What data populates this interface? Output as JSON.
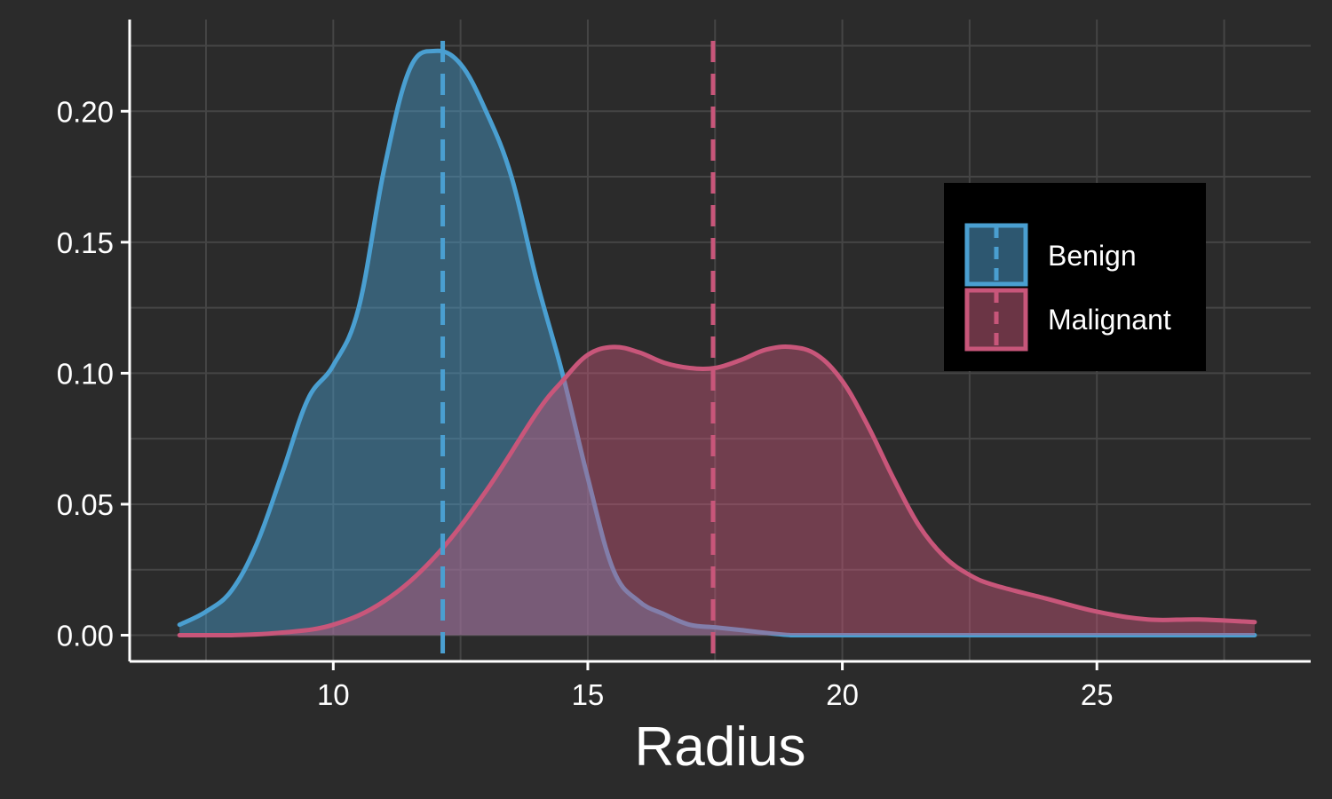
{
  "chart_data": {
    "type": "area",
    "title": "",
    "xlabel": "Radius",
    "ylabel": "",
    "xlim": [
      6,
      29.2
    ],
    "ylim": [
      -0.01,
      0.235
    ],
    "xticks": [
      10,
      15,
      20,
      25
    ],
    "yticks": [
      0.0,
      0.05,
      0.1,
      0.15,
      0.2
    ],
    "xtick_labels": [
      "10",
      "15",
      "20",
      "25"
    ],
    "ytick_labels": [
      "0.00",
      "0.05",
      "0.10",
      "0.15",
      "0.20"
    ],
    "grid": true,
    "legend_position": "right",
    "series": [
      {
        "name": "Benign",
        "color": "#4a9fd1",
        "fill": "#2d5770",
        "mean": 12.15,
        "x": [
          6.98,
          7.5,
          8.0,
          8.5,
          9.0,
          9.5,
          10.0,
          10.5,
          11.0,
          11.5,
          12.0,
          12.5,
          13.0,
          13.5,
          14.0,
          14.5,
          15.0,
          15.5,
          16.0,
          16.5,
          17.0,
          17.5,
          18.0,
          19.0,
          20.0,
          22.0,
          25.0,
          28.1
        ],
        "y": [
          0.004,
          0.009,
          0.017,
          0.035,
          0.062,
          0.09,
          0.103,
          0.125,
          0.178,
          0.216,
          0.223,
          0.218,
          0.2,
          0.175,
          0.135,
          0.1,
          0.06,
          0.025,
          0.013,
          0.008,
          0.004,
          0.003,
          0.002,
          0.0,
          0.0,
          0.0,
          0.0,
          0.0
        ]
      },
      {
        "name": "Malignant",
        "color": "#c8567a",
        "fill": "#6b3545",
        "mean": 17.46,
        "x": [
          6.98,
          8.0,
          9.0,
          10.0,
          11.0,
          12.0,
          13.0,
          14.0,
          14.5,
          15.0,
          15.5,
          16.0,
          16.5,
          17.0,
          17.5,
          18.0,
          18.5,
          19.0,
          19.5,
          20.0,
          20.5,
          21.0,
          21.5,
          22.0,
          22.5,
          23.0,
          24.0,
          25.0,
          26.0,
          27.0,
          28.1
        ],
        "y": [
          0.0,
          0.0,
          0.001,
          0.004,
          0.013,
          0.03,
          0.055,
          0.085,
          0.097,
          0.107,
          0.11,
          0.108,
          0.104,
          0.102,
          0.102,
          0.105,
          0.109,
          0.11,
          0.107,
          0.097,
          0.08,
          0.06,
          0.042,
          0.03,
          0.023,
          0.019,
          0.014,
          0.009,
          0.006,
          0.006,
          0.005
        ]
      }
    ]
  },
  "legend": {
    "items": [
      {
        "label": "Benign"
      },
      {
        "label": "Malignant"
      }
    ]
  },
  "colors": {
    "panel_background": "#2b2b2b",
    "grid": "#454545",
    "axis": "#ffffff",
    "legend_background": "#000000"
  }
}
